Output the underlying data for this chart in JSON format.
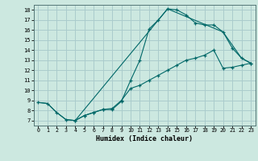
{
  "title": "",
  "xlabel": "Humidex (Indice chaleur)",
  "bg_color": "#cce8e0",
  "grid_color": "#aacccc",
  "line_color": "#006868",
  "xlim": [
    -0.5,
    23.5
  ],
  "ylim": [
    6.5,
    18.5
  ],
  "xticks": [
    0,
    1,
    2,
    3,
    4,
    5,
    6,
    7,
    8,
    9,
    10,
    11,
    12,
    13,
    14,
    15,
    16,
    17,
    18,
    19,
    20,
    21,
    22,
    23
  ],
  "yticks": [
    7,
    8,
    9,
    10,
    11,
    12,
    13,
    14,
    15,
    16,
    17,
    18
  ],
  "line1_x": [
    0,
    1,
    2,
    3,
    4,
    5,
    6,
    7,
    8,
    9,
    10,
    11,
    12,
    13,
    14,
    15,
    16,
    17,
    18,
    19,
    20,
    21,
    22,
    23
  ],
  "line1_y": [
    8.8,
    8.7,
    7.8,
    7.1,
    7.0,
    7.5,
    7.8,
    8.1,
    8.1,
    8.9,
    11.0,
    13.0,
    16.1,
    17.0,
    18.1,
    18.0,
    17.5,
    16.7,
    16.5,
    16.5,
    15.8,
    14.2,
    13.2,
    12.7
  ],
  "line2_x": [
    0,
    1,
    2,
    3,
    4,
    14,
    20,
    22,
    23
  ],
  "line2_y": [
    8.8,
    8.7,
    7.8,
    7.1,
    7.0,
    18.1,
    15.8,
    13.2,
    12.7
  ],
  "line3_x": [
    4,
    5,
    6,
    7,
    8,
    9,
    10,
    11,
    12,
    13,
    14,
    15,
    16,
    17,
    18,
    19,
    20,
    21,
    22,
    23
  ],
  "line3_y": [
    7.0,
    7.5,
    7.8,
    8.1,
    8.2,
    9.0,
    10.2,
    10.5,
    11.0,
    11.5,
    12.0,
    12.5,
    13.0,
    13.2,
    13.5,
    14.0,
    12.2,
    12.3,
    12.5,
    12.7
  ]
}
